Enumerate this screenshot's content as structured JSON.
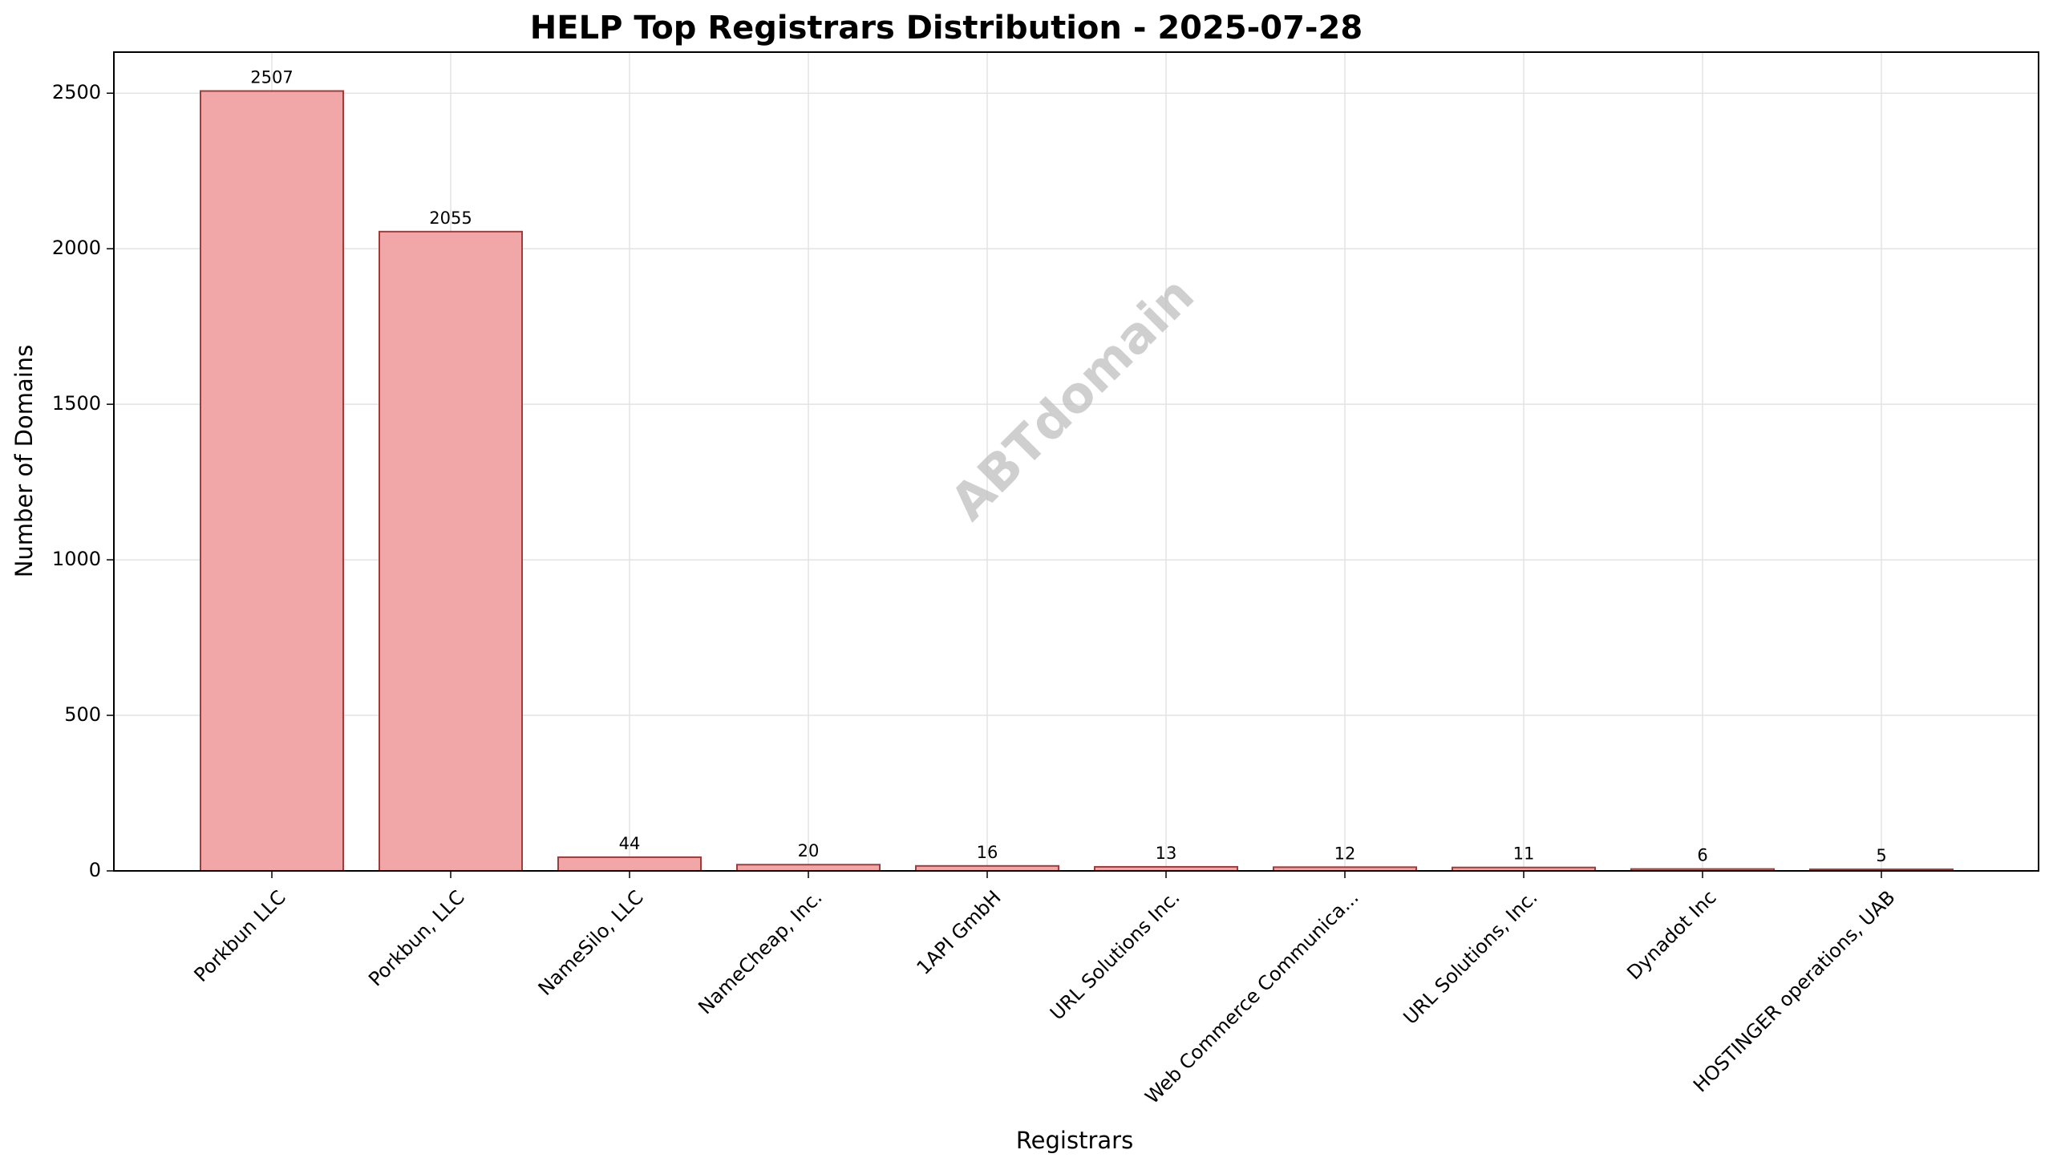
{
  "chart_data": {
    "type": "bar",
    "title": "HELP Top Registrars Distribution - 2025-07-28",
    "xlabel": "Registrars",
    "ylabel": "Number of Domains",
    "categories": [
      "Porkbun LLC",
      "Porkbun, LLC",
      "NameSilo, LLC",
      "NameCheap, Inc.",
      "1API GmbH",
      "URL Solutions Inc.",
      "Web Commerce Communica...",
      "URL Solutions, Inc.",
      "Dynadot Inc",
      "HOSTINGER operations, UAB"
    ],
    "values": [
      2507,
      2055,
      44,
      20,
      16,
      13,
      12,
      11,
      6,
      5
    ],
    "ylim": [
      0,
      2632
    ],
    "yticks": [
      0,
      500,
      1000,
      1500,
      2000,
      2500
    ],
    "grid": true,
    "bar_color": "#f1a7a7",
    "bar_edge_color": "#a33b3b",
    "watermark": "ABTdomain"
  }
}
